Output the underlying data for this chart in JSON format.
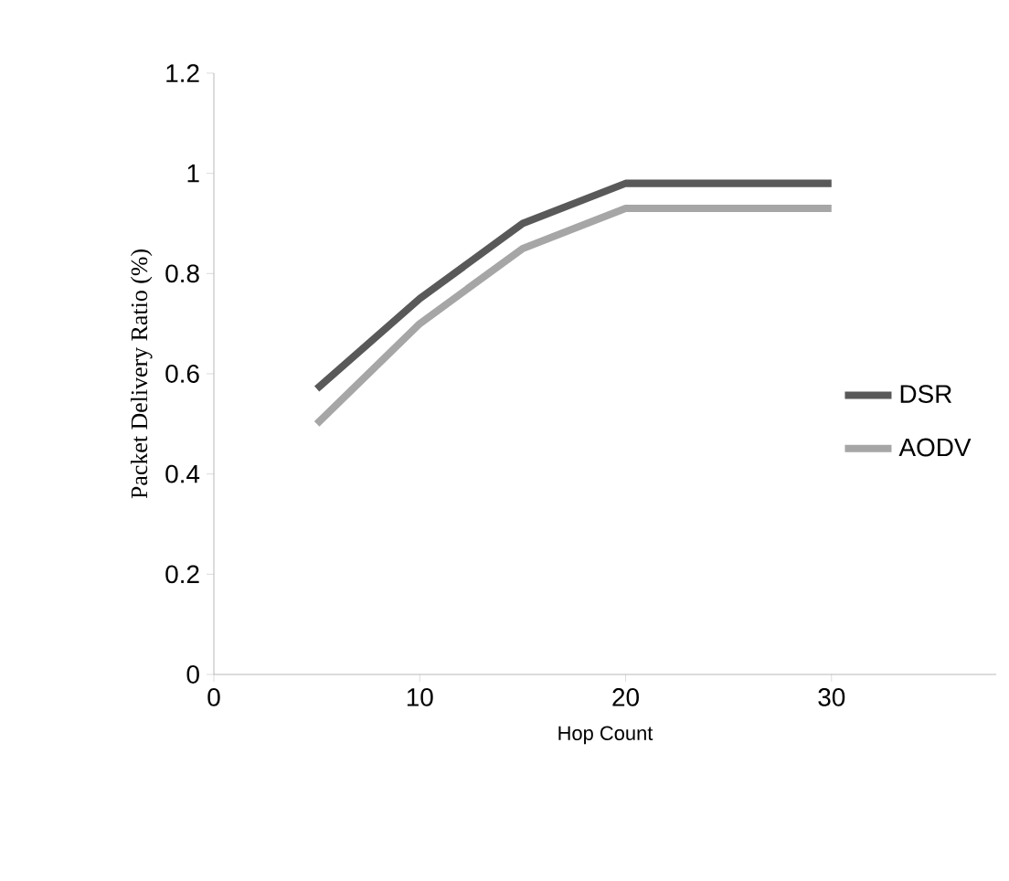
{
  "chart_data": {
    "type": "line",
    "xlabel": "Hop Count",
    "ylabel": "Packet Delivery Ratio (%)",
    "x": [
      5,
      10,
      15,
      20,
      30
    ],
    "series": [
      {
        "name": "DSR",
        "color": "#595959",
        "values": [
          0.57,
          0.75,
          0.9,
          0.98,
          0.98
        ]
      },
      {
        "name": "AODV",
        "color": "#a6a6a6",
        "values": [
          0.5,
          0.7,
          0.85,
          0.93,
          0.93
        ]
      }
    ],
    "xlim": [
      0,
      38
    ],
    "xticks": [
      0,
      10,
      20,
      30
    ],
    "ylim": [
      0,
      1.2
    ],
    "yticks": [
      0,
      0.2,
      0.4,
      0.6,
      0.8,
      1,
      1.2
    ],
    "grid": false,
    "legend": "right",
    "marker": "none",
    "line_style": "solid"
  }
}
